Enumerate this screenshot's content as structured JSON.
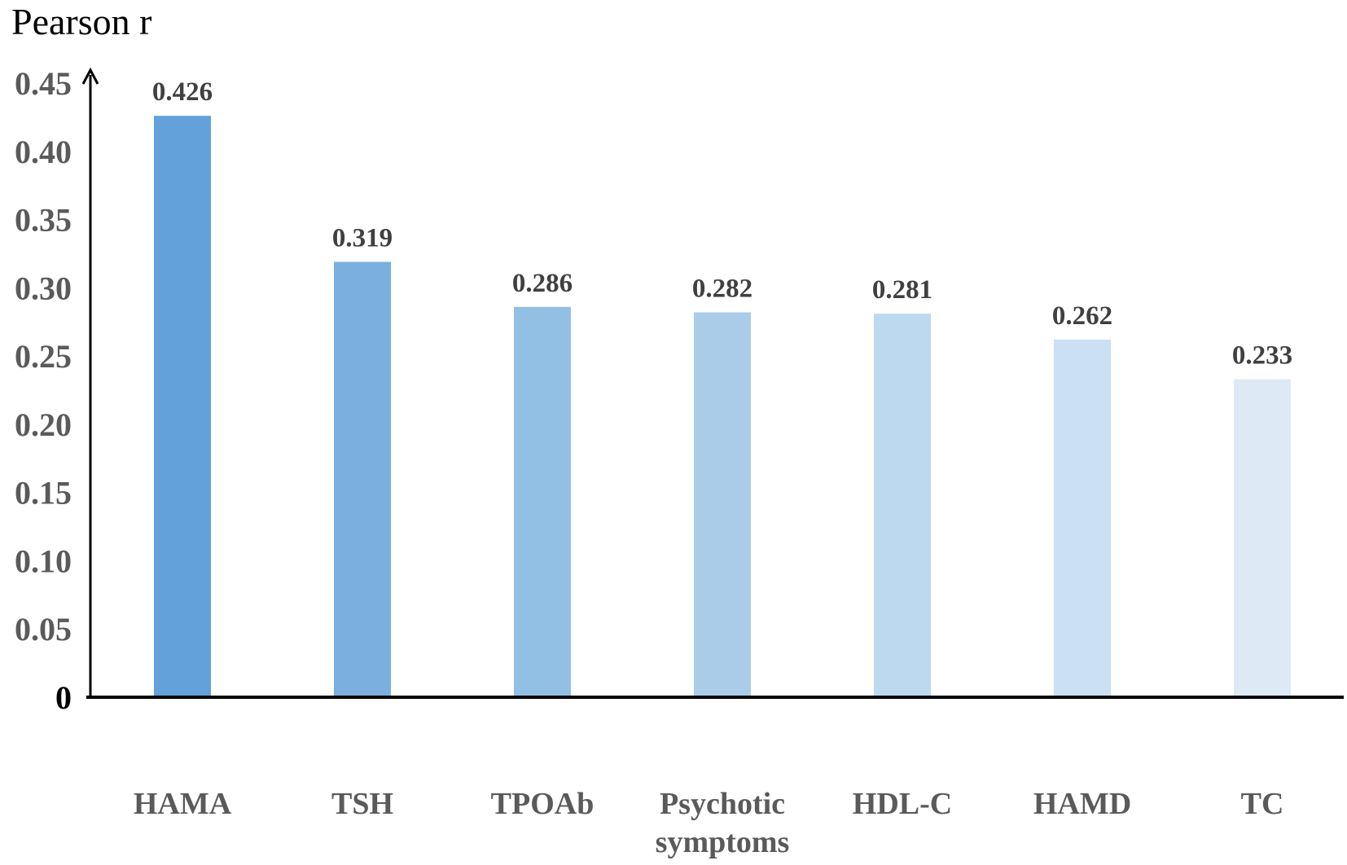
{
  "chart_data": {
    "type": "bar",
    "title": "Pearson r",
    "xlabel": "",
    "ylabel": "",
    "ylim": [
      0,
      0.45
    ],
    "yticks": [
      "0",
      "0.05",
      "0.10",
      "0.15",
      "0.20",
      "0.25",
      "0.30",
      "0.35",
      "0.40",
      "0.45"
    ],
    "categories": [
      [
        "HAMA"
      ],
      [
        "TSH"
      ],
      [
        "TPOAb"
      ],
      [
        "Psychotic",
        "symptoms"
      ],
      [
        "HDL-C"
      ],
      [
        "HAMD"
      ],
      [
        "TC"
      ]
    ],
    "values": [
      0.426,
      0.319,
      0.286,
      0.282,
      0.281,
      0.262,
      0.233
    ],
    "value_labels": [
      "0.426",
      "0.319",
      "0.286",
      "0.282",
      "0.281",
      "0.262",
      "0.233"
    ],
    "colors": [
      "#62a1d9",
      "#7aafdf",
      "#92bfe4",
      "#abcce9",
      "#bcd9f0",
      "#cbe0f3",
      "#dde9f5"
    ],
    "grid": false,
    "legend": "none"
  }
}
